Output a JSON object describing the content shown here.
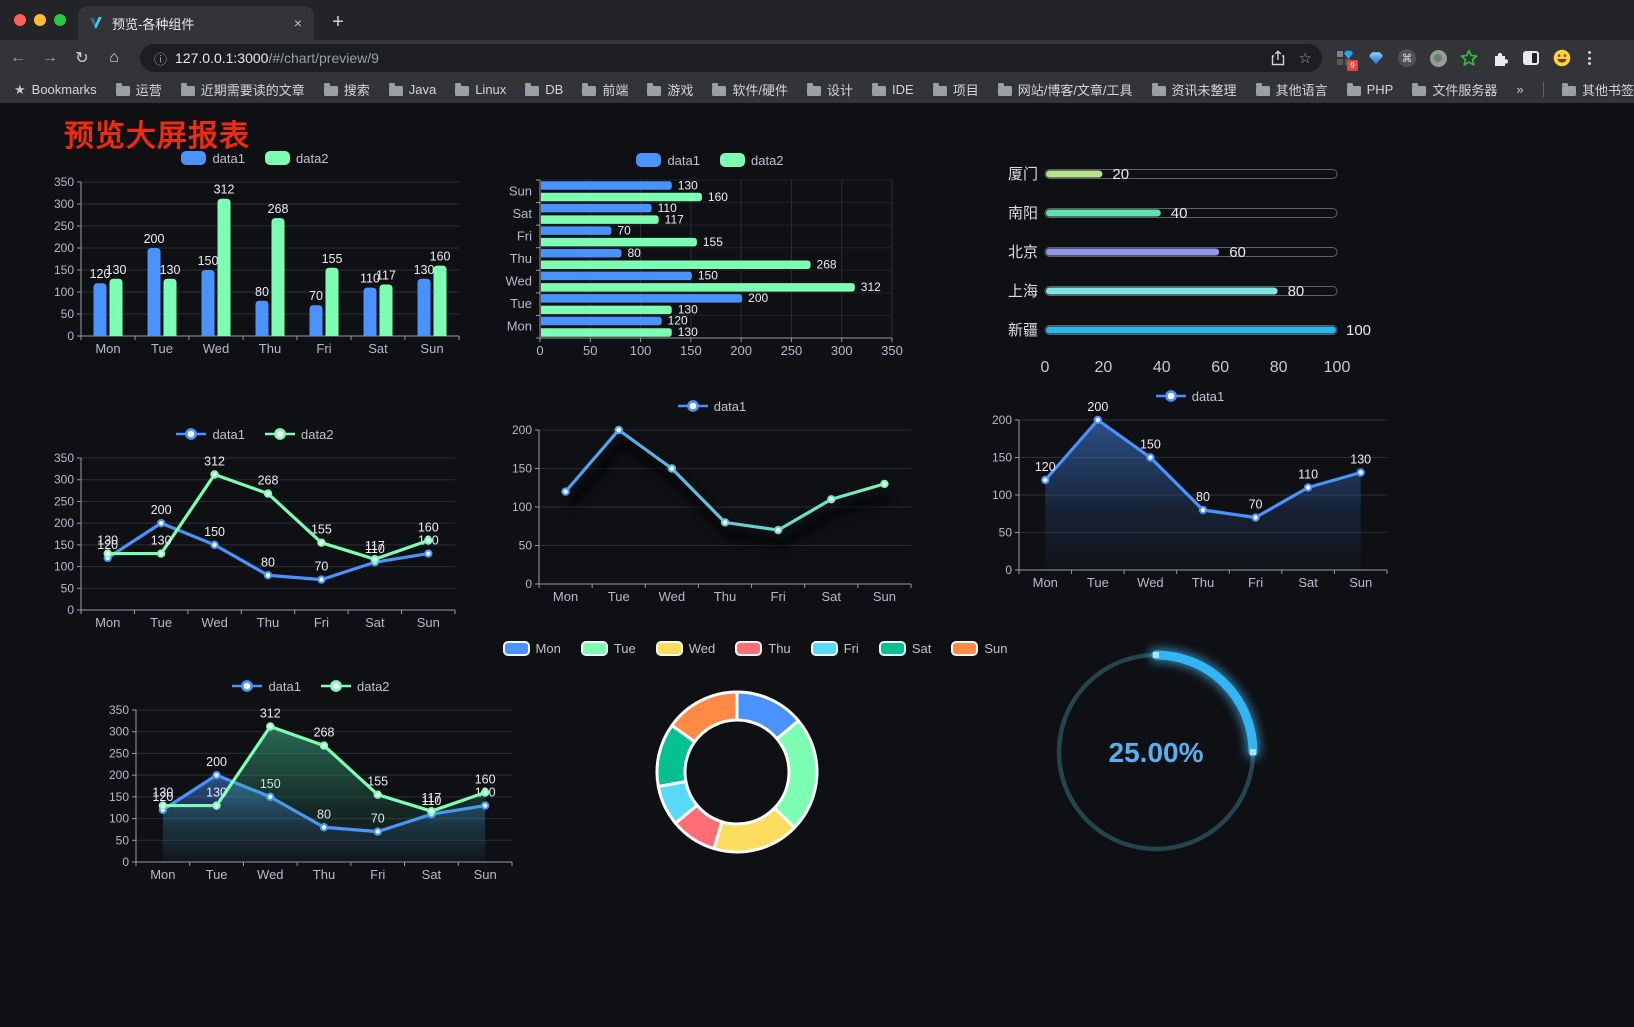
{
  "browser": {
    "tab": {
      "title": "预览-各种组件",
      "close_glyph": "×",
      "new_tab_glyph": "+"
    },
    "url": {
      "host": "127.0.0.1:3000",
      "path": "/#/chart/preview/9"
    },
    "nav": {
      "back": "←",
      "forward": "→",
      "reload": "↻",
      "home": "⌂",
      "site_info": "ⓘ",
      "star": "☆",
      "command": "⌘"
    },
    "extensions_badge": "9",
    "bookmarks": {
      "label": "Bookmarks",
      "star_glyph": "★",
      "folders": [
        "运营",
        "近期需要读的文章",
        "搜索",
        "Java",
        "Linux",
        "DB",
        "前端",
        "游戏",
        "软件/硬件",
        "设计",
        "IDE",
        "项目",
        "网站/博客/文章/工具",
        "资讯未整理",
        "其他语言",
        "PHP",
        "文件服务器"
      ],
      "overflow_chevron": "»",
      "other_bookmarks": "其他书签"
    }
  },
  "page": {
    "title": "预览大屏报表",
    "title_color": "#ee2b0e",
    "background": "#0f1014"
  },
  "palette": {
    "blue": "#4992ff",
    "green": "#7cffb2",
    "yellow": "#fddd60",
    "red": "#ff6e76",
    "cyan": "#58d9f9",
    "teal": "#05c091",
    "orange": "#ff8a45",
    "axis_label": "#b9b8ce",
    "axis_line": "#9a9ba5",
    "grid_line": "#2c2d33",
    "value_label": "#ececf2"
  },
  "chart_data": [
    {
      "id": "bar-grouped",
      "type": "bar",
      "categories": [
        "Mon",
        "Tue",
        "Wed",
        "Thu",
        "Fri",
        "Sat",
        "Sun"
      ],
      "series": [
        {
          "name": "data1",
          "color": "#4992ff",
          "values": [
            120,
            200,
            150,
            80,
            70,
            110,
            130
          ]
        },
        {
          "name": "data2",
          "color": "#7cffb2",
          "values": [
            130,
            130,
            312,
            268,
            155,
            117,
            160
          ]
        }
      ],
      "ylim": [
        0,
        350
      ],
      "ytick_step": 50,
      "legend_position": "top",
      "value_labels": true,
      "grid": true
    },
    {
      "id": "hbar-grouped",
      "type": "bar-horizontal",
      "categories_top_to_bottom": [
        "Sun",
        "Sat",
        "Fri",
        "Thu",
        "Wed",
        "Tue",
        "Mon"
      ],
      "series": [
        {
          "name": "data1",
          "color": "#4992ff",
          "values_top_to_bottom": [
            130,
            110,
            70,
            80,
            150,
            200,
            120
          ]
        },
        {
          "name": "data2",
          "color": "#7cffb2",
          "values_top_to_bottom": [
            160,
            117,
            155,
            268,
            312,
            130,
            130
          ]
        }
      ],
      "xlim": [
        0,
        350
      ],
      "xtick_step": 50,
      "legend_position": "top",
      "value_labels": true,
      "grid": true
    },
    {
      "id": "progress",
      "type": "bar-progress",
      "xlim": [
        0,
        100
      ],
      "xticks": [
        0,
        20,
        40,
        60,
        80,
        100
      ],
      "rows": [
        {
          "label": "厦门",
          "value": 20,
          "color": "#b9e38a"
        },
        {
          "label": "南阳",
          "value": 40,
          "color": "#5de3ae"
        },
        {
          "label": "北京",
          "value": 60,
          "color": "#9197e6"
        },
        {
          "label": "上海",
          "value": 80,
          "color": "#7fe3e8"
        },
        {
          "label": "新疆",
          "value": 100,
          "color": "#2bb9e8"
        }
      ]
    },
    {
      "id": "line-dual",
      "type": "line",
      "categories": [
        "Mon",
        "Tue",
        "Wed",
        "Thu",
        "Fri",
        "Sat",
        "Sun"
      ],
      "series": [
        {
          "name": "data1",
          "color": "#4992ff",
          "values": [
            120,
            200,
            150,
            80,
            70,
            110,
            130
          ]
        },
        {
          "name": "data2",
          "color": "#7cffb2",
          "values": [
            130,
            130,
            312,
            268,
            155,
            117,
            160
          ]
        }
      ],
      "ylim": [
        0,
        350
      ],
      "ytick_step": 50,
      "legend_position": "top",
      "value_labels": true,
      "grid": true
    },
    {
      "id": "line-gradient",
      "type": "line",
      "categories": [
        "Mon",
        "Tue",
        "Wed",
        "Thu",
        "Fri",
        "Sat",
        "Sun"
      ],
      "series": [
        {
          "name": "data1",
          "color_gradient": [
            "#4992ff",
            "#7cffb2"
          ],
          "values": [
            120,
            200,
            150,
            80,
            70,
            110,
            130
          ]
        }
      ],
      "ylim": [
        0,
        200
      ],
      "ytick_step": 50,
      "legend_position": "top",
      "value_labels": false,
      "shadow": true,
      "grid": true
    },
    {
      "id": "area-single",
      "type": "area",
      "categories": [
        "Mon",
        "Tue",
        "Wed",
        "Thu",
        "Fri",
        "Sat",
        "Sun"
      ],
      "series": [
        {
          "name": "data1",
          "color": "#4992ff",
          "values": [
            120,
            200,
            150,
            80,
            70,
            110,
            130
          ]
        }
      ],
      "ylim": [
        0,
        200
      ],
      "ytick_step": 50,
      "legend_position": "top",
      "value_labels": true,
      "grid": true
    },
    {
      "id": "area-dual",
      "type": "area",
      "categories": [
        "Mon",
        "Tue",
        "Wed",
        "Thu",
        "Fri",
        "Sat",
        "Sun"
      ],
      "series": [
        {
          "name": "data1",
          "color": "#4992ff",
          "values": [
            120,
            200,
            150,
            80,
            70,
            110,
            130
          ]
        },
        {
          "name": "data2",
          "color": "#3ec494",
          "line_color": "#7cffb2",
          "values": [
            130,
            130,
            312,
            268,
            155,
            117,
            160
          ]
        }
      ],
      "ylim": [
        0,
        350
      ],
      "ytick_step": 50,
      "legend_position": "top",
      "value_labels": true,
      "grid": true
    },
    {
      "id": "doughnut",
      "type": "pie",
      "ring": true,
      "legend_position": "top",
      "items": [
        {
          "label": "Mon",
          "value": 120,
          "color": "#4992ff"
        },
        {
          "label": "Tue",
          "value": 200,
          "color": "#7cffb2"
        },
        {
          "label": "Wed",
          "value": 150,
          "color": "#fddd60"
        },
        {
          "label": "Thu",
          "value": 80,
          "color": "#ff6e76"
        },
        {
          "label": "Fri",
          "value": 70,
          "color": "#58d9f9"
        },
        {
          "label": "Sat",
          "value": 110,
          "color": "#05c091"
        },
        {
          "label": "Sun",
          "value": 130,
          "color": "#ff8a45"
        }
      ]
    },
    {
      "id": "gauge",
      "type": "gauge",
      "label": "25.00%",
      "percent": 25,
      "color": "#33b4f4",
      "track_color": "#24454f",
      "text_color": "#55b1f1"
    }
  ]
}
